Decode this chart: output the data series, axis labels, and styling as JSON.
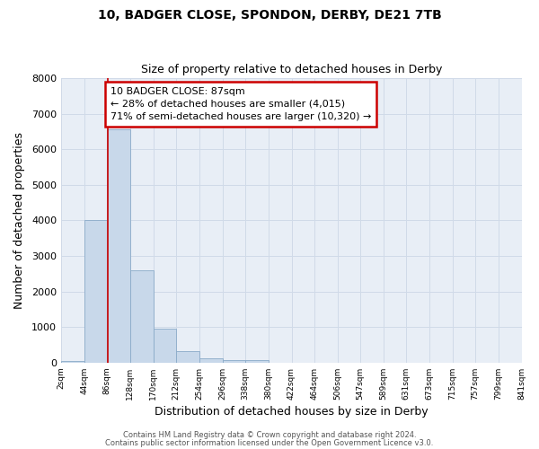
{
  "title1": "10, BADGER CLOSE, SPONDON, DERBY, DE21 7TB",
  "title2": "Size of property relative to detached houses in Derby",
  "xlabel": "Distribution of detached houses by size in Derby",
  "ylabel": "Number of detached properties",
  "bin_edges": [
    2,
    44,
    86,
    128,
    170,
    212,
    254,
    296,
    338,
    380,
    422,
    464,
    506,
    547,
    589,
    631,
    673,
    715,
    757,
    799,
    841
  ],
  "bar_heights": [
    50,
    4000,
    6550,
    2600,
    960,
    330,
    130,
    80,
    70,
    0,
    0,
    0,
    0,
    0,
    0,
    0,
    0,
    0,
    0,
    0
  ],
  "bar_color": "#c8d8ea",
  "bar_edgecolor": "#8aaac8",
  "property_line_x": 87,
  "annotation_line1": "10 BADGER CLOSE: 87sqm",
  "annotation_line2": "← 28% of detached houses are smaller (4,015)",
  "annotation_line3": "71% of semi-detached houses are larger (10,320) →",
  "annotation_box_color": "#ffffff",
  "annotation_box_edgecolor": "#cc0000",
  "vline_color": "#cc0000",
  "ylim": [
    0,
    8000
  ],
  "yticks": [
    0,
    1000,
    2000,
    3000,
    4000,
    5000,
    6000,
    7000,
    8000
  ],
  "xtick_labels": [
    "2sqm",
    "44sqm",
    "86sqm",
    "128sqm",
    "170sqm",
    "212sqm",
    "254sqm",
    "296sqm",
    "338sqm",
    "380sqm",
    "422sqm",
    "464sqm",
    "506sqm",
    "547sqm",
    "589sqm",
    "631sqm",
    "673sqm",
    "715sqm",
    "757sqm",
    "799sqm",
    "841sqm"
  ],
  "grid_color": "#d0dae8",
  "plot_bg_color": "#e8eef6",
  "fig_bg_color": "#ffffff",
  "footnote1": "Contains HM Land Registry data © Crown copyright and database right 2024.",
  "footnote2": "Contains public sector information licensed under the Open Government Licence v3.0."
}
